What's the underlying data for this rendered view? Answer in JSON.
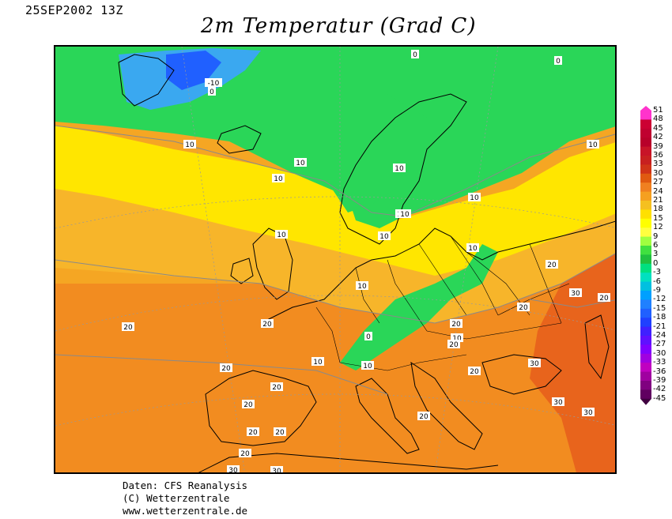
{
  "header": {
    "date": "25SEP2002 13Z",
    "title": "2m Temperatur (Grad C)"
  },
  "credits": {
    "line1": "Daten: CFS Reanalysis",
    "line2": "(C) Wetterzentrale",
    "line3": "www.wetterzentrale.de"
  },
  "colorbar": {
    "levels": [
      "51",
      "48",
      "45",
      "42",
      "39",
      "36",
      "33",
      "30",
      "27",
      "24",
      "21",
      "18",
      "15",
      "12",
      "9",
      "6",
      "3",
      "0",
      "-3",
      "-6",
      "-9",
      "-12",
      "-15",
      "-18",
      "-21",
      "-24",
      "-27",
      "-30",
      "-33",
      "-36",
      "-39",
      "-42",
      "-45"
    ],
    "colors": [
      "#ff33cc",
      "#cc0033",
      "#c00030",
      "#b8002a",
      "#c81428",
      "#c82020",
      "#d03418",
      "#e05a10",
      "#f08020",
      "#f5a020",
      "#f5c020",
      "#ffe000",
      "#ffff00",
      "#ffff40",
      "#a0ff40",
      "#40e040",
      "#20c040",
      "#00e080",
      "#00e0c0",
      "#00c0e0",
      "#00a0ff",
      "#2080ff",
      "#2060ff",
      "#2040ff",
      "#4020ff",
      "#6010ff",
      "#8000ff",
      "#a000e0",
      "#c000c0",
      "#a000a0",
      "#800080",
      "#600060",
      "#400040"
    ]
  },
  "contour_labels": [
    {
      "text": "0",
      "lon_lat": "NW Russia"
    },
    {
      "text": "0",
      "lon_lat": "Arctic"
    },
    {
      "text": "-10",
      "lon_lat": "Greenland"
    },
    {
      "text": "0",
      "lon_lat": "Greenland"
    },
    {
      "text": "10",
      "lon_lat": "N Atlantic"
    },
    {
      "text": "10",
      "lon_lat": "N Atlantic"
    },
    {
      "text": "10",
      "lon_lat": "N Atlantic"
    },
    {
      "text": "10",
      "lon_lat": "N Sea"
    },
    {
      "text": "10",
      "lon_lat": "Sweden"
    },
    {
      "text": "10",
      "lon_lat": "Baltic"
    },
    {
      "text": "10",
      "lon_lat": "Baltic"
    },
    {
      "text": "10",
      "lon_lat": "Russia"
    },
    {
      "text": "10",
      "lon_lat": "Russia"
    },
    {
      "text": "10",
      "lon_lat": "Russia"
    },
    {
      "text": "10",
      "lon_lat": "Ukraine"
    },
    {
      "text": "10",
      "lon_lat": "Germany"
    },
    {
      "text": "10",
      "lon_lat": "France"
    },
    {
      "text": "10",
      "lon_lat": "Alps"
    },
    {
      "text": "10",
      "lon_lat": "Alps"
    },
    {
      "text": "0",
      "lon_lat": "Alps"
    },
    {
      "text": "20",
      "lon_lat": "Atlantic"
    },
    {
      "text": "20",
      "lon_lat": "Biscay"
    },
    {
      "text": "20",
      "lon_lat": "Spain"
    },
    {
      "text": "20",
      "lon_lat": "Spain"
    },
    {
      "text": "20",
      "lon_lat": "Spain"
    },
    {
      "text": "20",
      "lon_lat": "Spain"
    },
    {
      "text": "20",
      "lon_lat": "Spain"
    },
    {
      "text": "20",
      "lon_lat": "Spain"
    },
    {
      "text": "20",
      "lon_lat": "Italy"
    },
    {
      "text": "20",
      "lon_lat": "Balkans"
    },
    {
      "text": "20",
      "lon_lat": "Balkans"
    },
    {
      "text": "20",
      "lon_lat": "Balkans"
    },
    {
      "text": "20",
      "lon_lat": "Black Sea"
    },
    {
      "text": "20",
      "lon_lat": "Russia"
    },
    {
      "text": "20",
      "lon_lat": "Caspian"
    },
    {
      "text": "30",
      "lon_lat": "Kazakhstan"
    },
    {
      "text": "30",
      "lon_lat": "Turkey"
    },
    {
      "text": "30",
      "lon_lat": "Turkey"
    },
    {
      "text": "30",
      "lon_lat": "Middle East"
    },
    {
      "text": "30",
      "lon_lat": "N Africa"
    },
    {
      "text": "30",
      "lon_lat": "N Africa"
    }
  ]
}
